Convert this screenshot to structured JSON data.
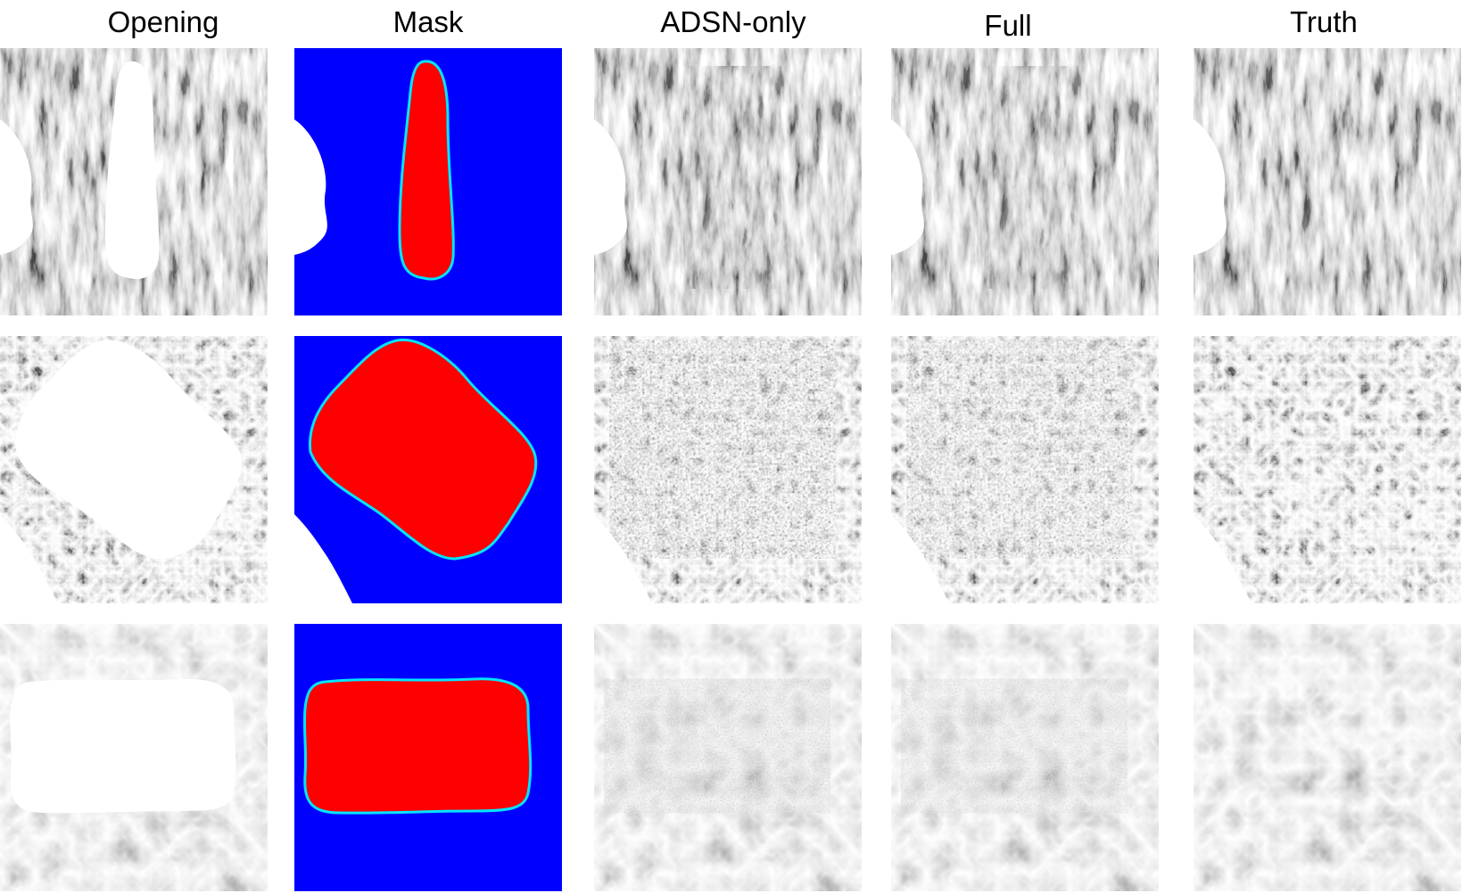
{
  "columns": [
    {
      "key": "opening",
      "label": "Opening"
    },
    {
      "key": "mask",
      "label": "Mask"
    },
    {
      "key": "adsn",
      "label": "ADSN-only"
    },
    {
      "key": "full",
      "label": "Full"
    },
    {
      "key": "truth",
      "label": "Truth"
    }
  ],
  "rows": [
    {
      "key": "bark",
      "texture": "bark"
    },
    {
      "key": "cracked",
      "texture": "cracked"
    },
    {
      "key": "mud",
      "texture": "mud"
    }
  ],
  "colors": {
    "mask_background": "#0000ff",
    "mask_fill": "#ff0000",
    "mask_outline": "#00ffff",
    "hole": "#ffffff"
  }
}
